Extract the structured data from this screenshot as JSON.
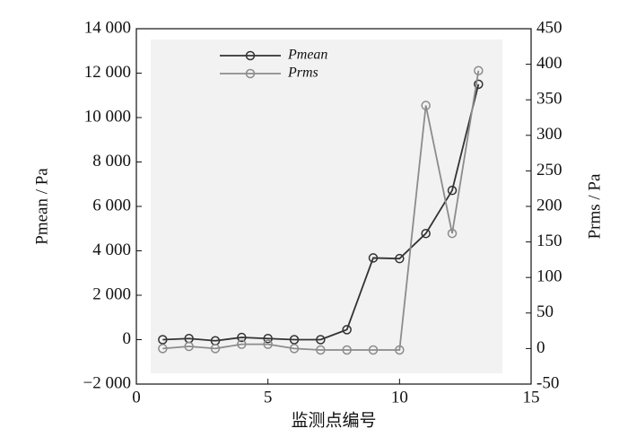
{
  "chart_data": {
    "type": "line",
    "xlabel": "监测点编号",
    "ylabel": "Pmean / Pa",
    "y2label": "Prms / Pa",
    "x": [
      1,
      2,
      3,
      4,
      5,
      6,
      7,
      8,
      9,
      10,
      11,
      12,
      13
    ],
    "series": [
      {
        "name": "Pmean",
        "color": "#333333",
        "values": [
          0,
          50,
          -50,
          100,
          50,
          0,
          0,
          450,
          3680,
          3650,
          4780,
          6720,
          11500
        ]
      },
      {
        "name": "Prms",
        "color": "#8c8c8c",
        "axis": "y2",
        "values": [
          0,
          3,
          0,
          6,
          6,
          0,
          -2,
          -2,
          -2,
          -2,
          342,
          162,
          391
        ]
      }
    ],
    "xlim": [
      0,
      15
    ],
    "xticks": [
      0,
      5,
      10,
      15
    ],
    "ylim": [
      -2000,
      14000
    ],
    "yticks": [
      {
        "value": -2000,
        "label": "−2 000"
      },
      0,
      {
        "value": 2000,
        "label": "2 000"
      },
      {
        "value": 4000,
        "label": "4 000"
      },
      {
        "value": 6000,
        "label": "6 000"
      },
      {
        "value": 8000,
        "label": "8 000"
      },
      {
        "value": 10000,
        "label": "10 000"
      },
      {
        "value": 12000,
        "label": "12 000"
      },
      {
        "value": 14000,
        "label": "14 000"
      }
    ],
    "y2lim": [
      -50,
      450
    ],
    "y2ticks": [
      -50,
      0,
      50,
      100,
      150,
      200,
      250,
      300,
      350,
      400,
      450
    ],
    "legend": "top-left"
  }
}
